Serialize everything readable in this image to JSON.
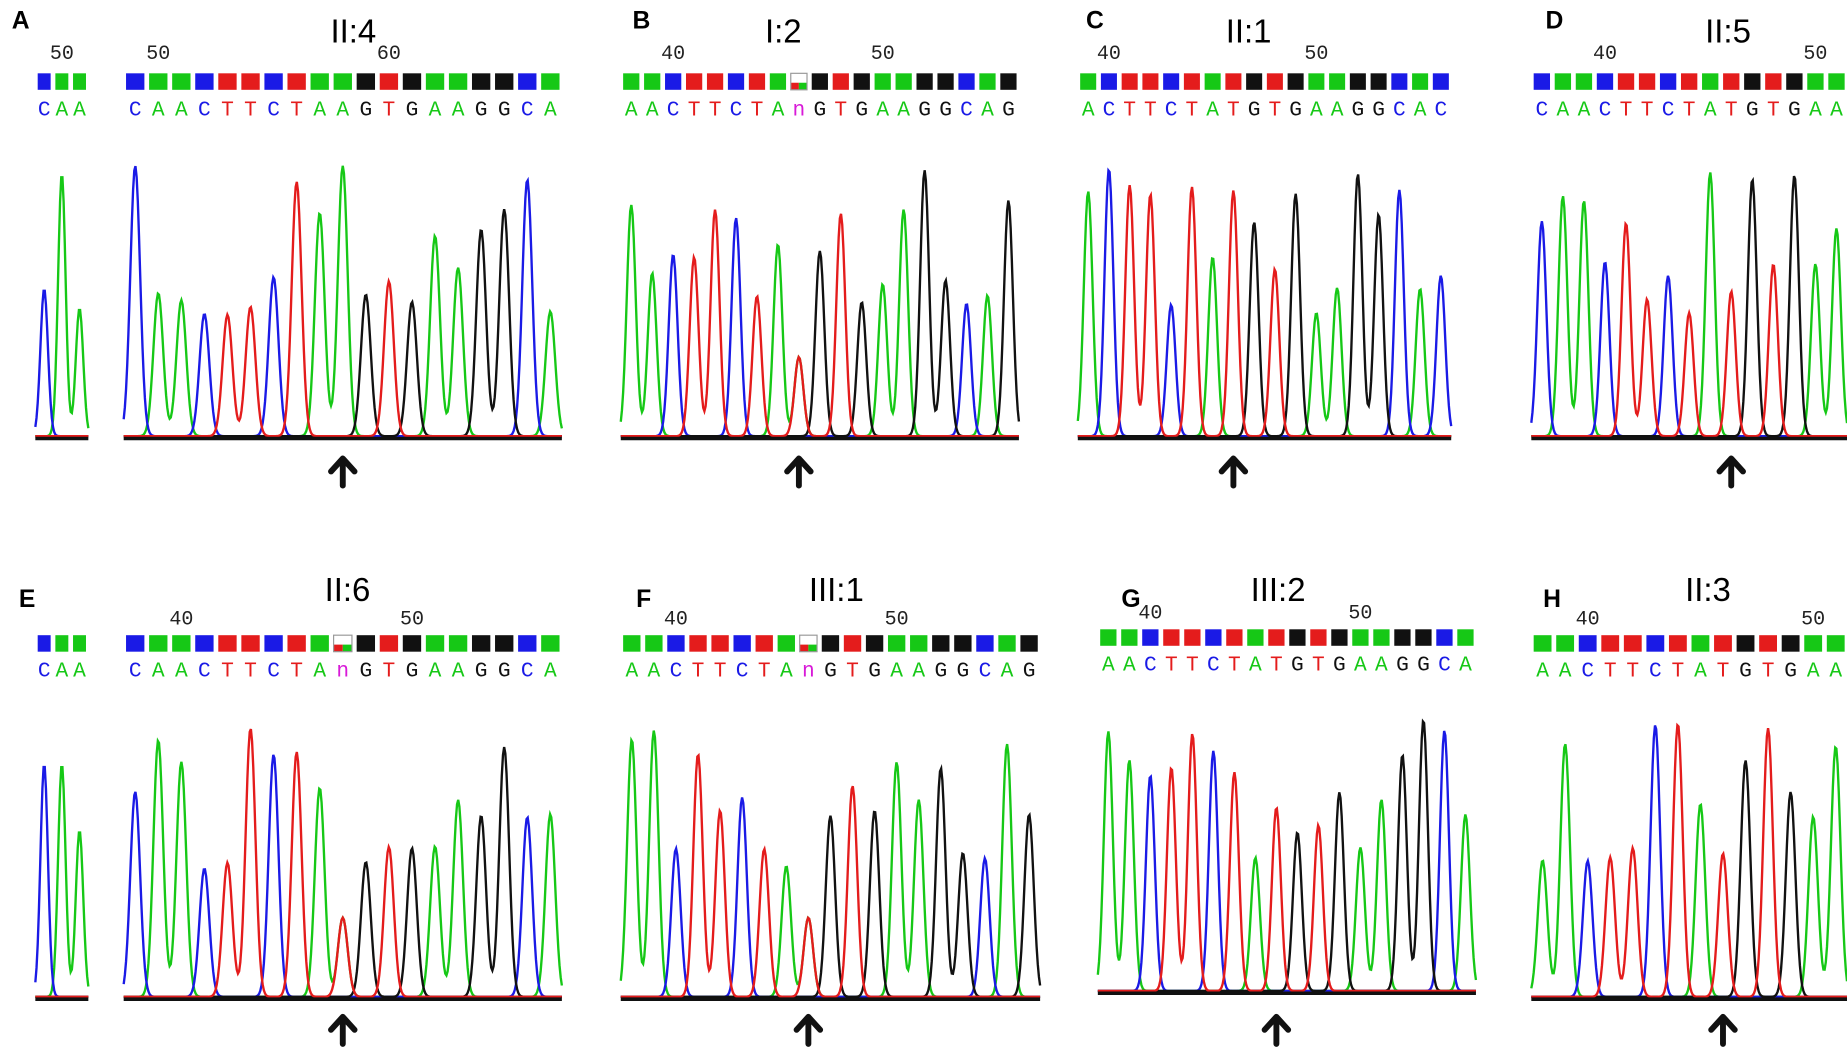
{
  "panels": [
    {
      "letter": "A",
      "title": "II:4",
      "segments": [
        {
          "ticks": [
            50
          ],
          "bases": [
            "C",
            "A",
            "A"
          ]
        },
        {
          "ticks": [
            50,
            60
          ],
          "bases": [
            "C",
            "A",
            "A",
            "C",
            "T",
            "T",
            "C",
            "T",
            "A",
            "A",
            "G",
            "T",
            "G",
            "A",
            "A",
            "G",
            "G",
            "C",
            "A"
          ]
        }
      ]
    },
    {
      "letter": "B",
      "title": "I:2",
      "segments": [
        {
          "ticks": [
            40,
            50
          ],
          "bases": [
            "A",
            "A",
            "C",
            "T",
            "T",
            "C",
            "T",
            "A",
            "n",
            "G",
            "T",
            "G",
            "A",
            "A",
            "G",
            "G",
            "C",
            "A",
            "G"
          ]
        }
      ]
    },
    {
      "letter": "C",
      "title": "II:1",
      "segments": [
        {
          "ticks": [
            40,
            50
          ],
          "bases": [
            "A",
            "C",
            "T",
            "T",
            "C",
            "T",
            "A",
            "T",
            "G",
            "T",
            "G",
            "A",
            "A",
            "G",
            "G",
            "C",
            "A",
            "C"
          ]
        }
      ]
    },
    {
      "letter": "D",
      "title": "II:5",
      "segments": [
        {
          "ticks": [
            40,
            50
          ],
          "bases": [
            "C",
            "A",
            "A",
            "C",
            "T",
            "T",
            "C",
            "T",
            "A",
            "T",
            "G",
            "T",
            "G",
            "A",
            "A"
          ]
        }
      ]
    },
    {
      "letter": "E",
      "title": "II:6",
      "segments": [
        {
          "ticks": [],
          "bases": [
            "C",
            "A",
            "A"
          ]
        },
        {
          "ticks": [
            40,
            50
          ],
          "bases": [
            "C",
            "A",
            "A",
            "C",
            "T",
            "T",
            "C",
            "T",
            "A",
            "n",
            "G",
            "T",
            "G",
            "A",
            "A",
            "G",
            "G",
            "C",
            "A"
          ]
        }
      ]
    },
    {
      "letter": "F",
      "title": "III:1",
      "segments": [
        {
          "ticks": [
            40,
            50
          ],
          "bases": [
            "A",
            "A",
            "C",
            "T",
            "T",
            "C",
            "T",
            "A",
            "n",
            "G",
            "T",
            "G",
            "A",
            "A",
            "G",
            "G",
            "C",
            "A",
            "G"
          ]
        }
      ]
    },
    {
      "letter": "G",
      "title": "III:2",
      "segments": [
        {
          "ticks": [
            40,
            50
          ],
          "bases": [
            "A",
            "A",
            "C",
            "T",
            "T",
            "C",
            "T",
            "A",
            "T",
            "G",
            "T",
            "G",
            "A",
            "A",
            "G",
            "G",
            "C",
            "A"
          ]
        }
      ]
    },
    {
      "letter": "H",
      "title": "II:3",
      "segments": [
        {
          "ticks": [
            40,
            50
          ],
          "bases": [
            "A",
            "A",
            "C",
            "T",
            "T",
            "C",
            "T",
            "A",
            "T",
            "G",
            "T",
            "G",
            "A",
            "A"
          ]
        }
      ]
    }
  ]
}
